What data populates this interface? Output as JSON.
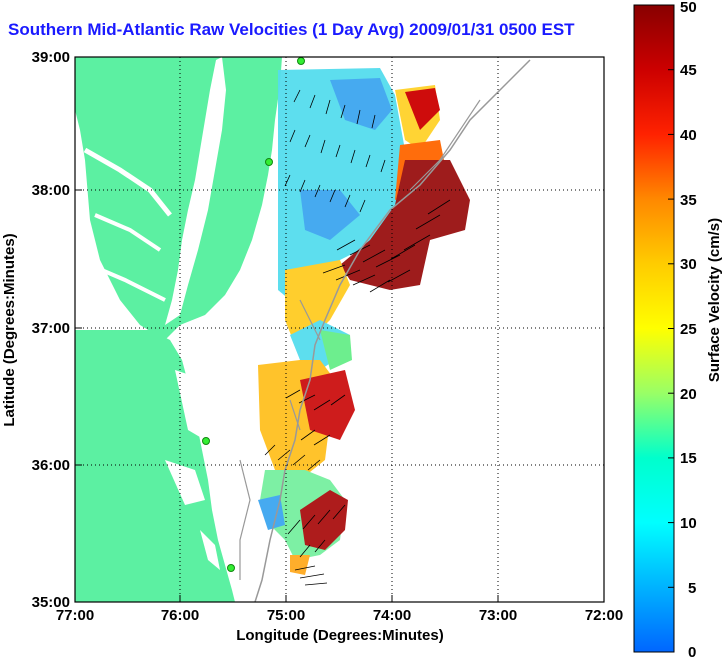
{
  "title": "Southern Mid-Atlantic Raw Velocities (1 Day Avg) 2009/01/31 0500 EST",
  "xlabel": "Longitude (Degrees:Minutes)",
  "ylabel": "Latitude (Degrees:Minutes)",
  "x_ticks": [
    "77:00",
    "76:00",
    "75:00",
    "74:00",
    "73:00",
    "72:00"
  ],
  "y_ticks": [
    "39:00",
    "38:00",
    "37:00",
    "36:00",
    "35:00"
  ],
  "colorbar": {
    "label": "Surface Velocity (cm/s)",
    "ticks": [
      "50",
      "45",
      "40",
      "35",
      "30",
      "25",
      "20",
      "15",
      "10",
      "5",
      "0"
    ],
    "range": [
      0,
      50
    ]
  },
  "colors": {
    "land": "#5cf0a2",
    "ocean": "#ffffff",
    "title": "#1a1aff",
    "station": "#33ee33",
    "bathymetry": "#999999"
  },
  "map_extent": {
    "lon": [
      -77,
      -72
    ],
    "lat": [
      35,
      39
    ]
  },
  "grid": true
}
